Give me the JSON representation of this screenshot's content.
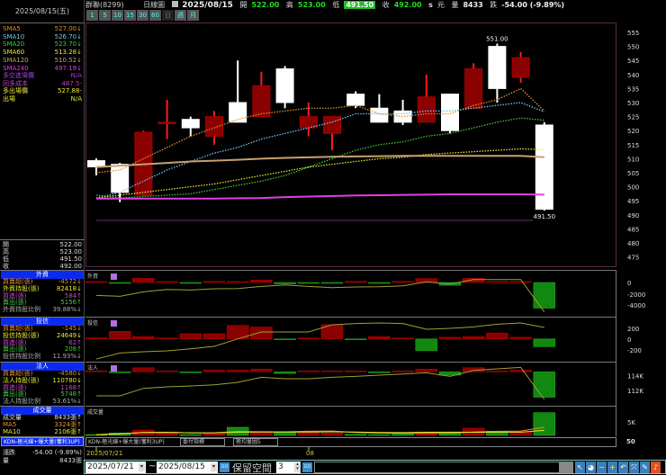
{
  "header": {
    "stock": "群聯(8299)",
    "chart_type": "日線圖",
    "date": "2025/08/15",
    "open_label": "開",
    "open": "522.00",
    "high_label": "高",
    "high": "523.00",
    "low_label": "低",
    "low": "491.50",
    "close_label": "收",
    "close": "492.00",
    "s": "s",
    "unit": "元",
    "volume_label": "量",
    "volume": "8433",
    "change_label": "跌",
    "change": "-54.00 (-9.89%)"
  },
  "tabs": [
    "1",
    "5",
    "10",
    "15",
    "30",
    "60",
    "日",
    "週",
    "月"
  ],
  "left": {
    "date": "2025/08/15(五)",
    "ma": [
      {
        "label": "SMA5",
        "value": "527.00↓",
        "color": "#e8902c"
      },
      {
        "label": "SMA10",
        "value": "526.70↓",
        "color": "#6fc8f0"
      },
      {
        "label": "SMA20",
        "value": "523.70↓",
        "color": "#3ccd3c"
      },
      {
        "label": "SMA60",
        "value": "513.28↓",
        "color": "#e8e830"
      },
      {
        "label": "SMA120",
        "value": "510.52↓",
        "color": "#c8a070"
      },
      {
        "label": "SMA240",
        "value": "497.19↓",
        "color": "#e040e0"
      }
    ],
    "extra": [
      {
        "label": "多空進場價",
        "value": "N/A",
        "color": "#a040e0"
      },
      {
        "label": "回多成本",
        "value": "487.5-",
        "color": "#c040c0"
      },
      {
        "label": "多出場價",
        "value": "527.88-",
        "color": "#e8e830"
      },
      {
        "label": "出場",
        "value": "N/A",
        "color": "#e8e830"
      }
    ],
    "ohlc": [
      {
        "label": "開",
        "value": "522.00"
      },
      {
        "label": "高",
        "value": "523.00"
      },
      {
        "label": "低",
        "value": "491.50"
      },
      {
        "label": "收",
        "value": "492.00"
      }
    ],
    "foreign": {
      "title": "外資",
      "rows": [
        {
          "label": "買賣超(張)",
          "value": "-4572↓",
          "color": "#e8902c"
        },
        {
          "label": "外資持股(張)",
          "value": "82418↓",
          "color": "#e8e830"
        },
        {
          "label": "買進(張)",
          "value": "584↑",
          "color": "#d040d0"
        },
        {
          "label": "賣出(張)",
          "value": "5156↑",
          "color": "#3ccd3c"
        },
        {
          "label": "外資持股比例",
          "value": "39.88%↓",
          "color": "#aaaaaa"
        }
      ]
    },
    "trust": {
      "title": "投信",
      "rows": [
        {
          "label": "買賣超(張)",
          "value": "-145↓",
          "color": "#e8902c"
        },
        {
          "label": "投信持股(張)",
          "value": "24649↓",
          "color": "#e8e830"
        },
        {
          "label": "買進(張)",
          "value": "62↑",
          "color": "#d040d0"
        },
        {
          "label": "賣出(張)",
          "value": "208↑",
          "color": "#3ccd3c"
        },
        {
          "label": "投信持股比例",
          "value": "11.93%↓",
          "color": "#aaaaaa"
        }
      ]
    },
    "inst": {
      "title": "法人",
      "rows": [
        {
          "label": "買賣超(張)",
          "value": "-4580↓",
          "color": "#e8902c"
        },
        {
          "label": "法人持股(張)",
          "value": "110780↓",
          "color": "#e8e830"
        },
        {
          "label": "買進(張)",
          "value": "1168↑",
          "color": "#d040d0"
        },
        {
          "label": "賣出(張)",
          "value": "5748↑",
          "color": "#3ccd3c"
        },
        {
          "label": "法人持股比例",
          "value": "53.61%↓",
          "color": "#aaaaaa"
        }
      ]
    },
    "vol": {
      "title": "成交量",
      "rows": [
        {
          "label": "成交量",
          "value": "8433張↑",
          "color": "#dddddd"
        },
        {
          "label": "MA5",
          "value": "3324張↑",
          "color": "#e8902c"
        },
        {
          "label": "MA10",
          "value": "2106張↑",
          "color": "#e8e830"
        }
      ]
    },
    "kd": "KDN-極光線+爆大量(獲利3UP)",
    "summary": [
      {
        "label": "漲跌",
        "value": "-54.00 (-9.89%)"
      },
      {
        "label": "量",
        "value": "8433張"
      }
    ]
  },
  "panels": {
    "foreign": "外資",
    "trust": "投信",
    "inst": "法人",
    "vol": "成交量"
  },
  "selectors": {
    "indicator": "KDN-極光線+爆大量(獲利3UP)",
    "sel2": "委付指標",
    "sel3": "極均量圖5",
    "right_value": "50"
  },
  "xaxis": {
    "start": "2025/07/21",
    "month": "08"
  },
  "bottom": {
    "from": "2025/07/21",
    "tilde": "~",
    "to": "2025/08/15",
    "go": "GO",
    "reserve_label": "保留空間",
    "reserve_value": "3"
  },
  "colors": {
    "up_body": "#8b0000",
    "up_wick": "#ff1a1a",
    "down_body": "#ffffff",
    "bar_up": "#8b0000",
    "bar_down": "#118811",
    "line": "#a0a030"
  },
  "chart_data": [
    {
      "type": "candlestick",
      "title": "",
      "yticks": [
        555,
        550,
        545,
        540,
        535,
        530,
        525,
        520,
        515,
        510,
        505,
        500,
        495,
        490,
        485,
        480,
        475
      ],
      "ylim": [
        475,
        555
      ],
      "annotations": [
        {
          "text": "551.00",
          "index": 17,
          "price": 551
        },
        {
          "text": "491.50",
          "index": 19,
          "price": 491.5
        }
      ],
      "candles": [
        {
          "o": 509.3,
          "h": 510.1,
          "l": 504.1,
          "c": 507.1
        },
        {
          "o": 508,
          "h": 508.5,
          "l": 494.5,
          "c": 498
        },
        {
          "o": 497,
          "h": 520,
          "l": 496.7,
          "c": 519.4
        },
        {
          "o": 522.5,
          "h": 531,
          "l": 517,
          "c": 523
        },
        {
          "o": 524,
          "h": 525,
          "l": 518,
          "c": 521
        },
        {
          "o": 518,
          "h": 527,
          "l": 515,
          "c": 525
        },
        {
          "o": 530,
          "h": 545,
          "l": 523,
          "c": 523
        },
        {
          "o": 525,
          "h": 541,
          "l": 525,
          "c": 536
        },
        {
          "o": 542,
          "h": 543,
          "l": 528,
          "c": 530
        },
        {
          "o": 521,
          "h": 530,
          "l": 518,
          "c": 525
        },
        {
          "o": 519,
          "h": 525,
          "l": 513,
          "c": 525
        },
        {
          "o": 533,
          "h": 534,
          "l": 528,
          "c": 529
        },
        {
          "o": 528,
          "h": 533,
          "l": 523,
          "c": 523
        },
        {
          "o": 527,
          "h": 531,
          "l": 522,
          "c": 523
        },
        {
          "o": 523,
          "h": 540,
          "l": 523,
          "c": 532
        },
        {
          "o": 533,
          "h": 533,
          "l": 519,
          "c": 520
        },
        {
          "o": 528,
          "h": 544,
          "l": 528,
          "c": 542
        },
        {
          "o": 550,
          "h": 551,
          "l": 530,
          "c": 535
        },
        {
          "o": 539,
          "h": 548,
          "l": 537,
          "c": 546
        },
        {
          "o": 522,
          "h": 523,
          "l": 491.5,
          "c": 492
        }
      ],
      "series": [
        {
          "name": "SMA5",
          "style": "dotted",
          "color": "#e8902c",
          "values": [
            505,
            506,
            510,
            514,
            518,
            521,
            524,
            526,
            527,
            528,
            528,
            529,
            526,
            525,
            526,
            526,
            529,
            531,
            535,
            527
          ]
        },
        {
          "name": "SMA10",
          "style": "dotted",
          "color": "#6fc8f0",
          "values": [
            496,
            498,
            502,
            506,
            509,
            512,
            514,
            517,
            519,
            521,
            523,
            526,
            526,
            526,
            527,
            527,
            528,
            529,
            530,
            526.7
          ]
        },
        {
          "name": "SMA20",
          "style": "dotted",
          "color": "#3ccd3c",
          "values": [
            497,
            496,
            496.5,
            497,
            497.5,
            499,
            500.5,
            502,
            504,
            507,
            510,
            513,
            515,
            516,
            518,
            519,
            521,
            523,
            524.5,
            523.7
          ]
        },
        {
          "name": "SMA60",
          "style": "dotted",
          "color": "#e8e830",
          "values": [
            496,
            497,
            498,
            499,
            500,
            501,
            502.5,
            504,
            505.5,
            507,
            508,
            509,
            510,
            510.5,
            511.5,
            512,
            512.5,
            513,
            513.5,
            513.28
          ]
        },
        {
          "name": "SMA120",
          "style": "solid",
          "color": "#c8a070",
          "values": [
            507,
            507.5,
            508,
            508.5,
            509,
            509.3,
            509.6,
            510,
            510.3,
            510.5,
            510.7,
            510.8,
            510.9,
            511,
            511,
            511,
            511,
            511,
            511,
            510.52
          ]
        },
        {
          "name": "SMA240",
          "style": "solid",
          "color": "#e040e0",
          "values": [
            495.8,
            495.8,
            495.8,
            495.8,
            495.8,
            495.8,
            495.9,
            496,
            496.3,
            496.5,
            496.7,
            496.9,
            497,
            497.1,
            497.2,
            497.3,
            497.3,
            497.3,
            497.3,
            497.19
          ]
        }
      ]
    },
    {
      "type": "bar",
      "title": "外資",
      "yticks": [
        "0",
        "-2000",
        "-4000"
      ],
      "net": [
        50,
        -100,
        750,
        150,
        -150,
        200,
        100,
        450,
        -250,
        -150,
        -150,
        200,
        -150,
        200,
        700,
        -500,
        750,
        100,
        100,
        -4572
      ],
      "holdings": [
        84745,
        84618,
        85253,
        85592,
        85507,
        85676,
        85719,
        86015,
        86226,
        86015,
        85846,
        85930,
        85973,
        86100,
        86650,
        86354,
        86990,
        86990,
        86990,
        82418
      ]
    },
    {
      "type": "bar",
      "title": "投信",
      "yticks": [
        "200",
        "0",
        "-200"
      ],
      "net": [
        20,
        140,
        45,
        5,
        95,
        95,
        250,
        220,
        -10,
        5,
        265,
        -10,
        45,
        10,
        -220,
        30,
        45,
        110,
        30,
        -145
      ],
      "holdings": [
        23629,
        23823,
        23862,
        23891,
        23959,
        24037,
        24280,
        24503,
        24503,
        24503,
        24736,
        24775,
        24794,
        24775,
        24590,
        24620,
        24668,
        24756,
        24794,
        24649
      ]
    },
    {
      "type": "bar",
      "title": "法人",
      "yticks": [
        "114K",
        "112K"
      ],
      "net": [
        50,
        -50,
        750,
        150,
        -50,
        300,
        300,
        500,
        -300,
        100,
        100,
        100,
        -50,
        100,
        500,
        -600,
        750,
        100,
        300,
        -4580
      ],
      "holdings": [
        111266,
        111266,
        112286,
        112490,
        112613,
        112776,
        113102,
        113796,
        113592,
        113592,
        113796,
        113918,
        114082,
        114245,
        114408,
        113918,
        114734,
        114938,
        115142,
        110780
      ]
    },
    {
      "type": "bar",
      "title": "成交量",
      "yticks": [
        "5K"
      ],
      "values": [
        300,
        900,
        2000,
        1300,
        300,
        600,
        3000,
        1500,
        1200,
        1500,
        900,
        400,
        300,
        800,
        1300,
        1200,
        2700,
        1600,
        1300,
        8433
      ]
    }
  ]
}
